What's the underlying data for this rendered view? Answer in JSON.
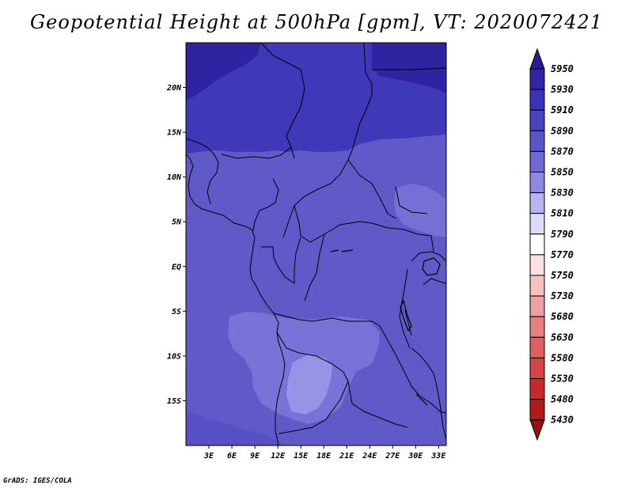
{
  "title": "Geopotential Height at 500hPa [gpm], VT: 2020072421",
  "credit": "GrADS: IGES/COLA",
  "map": {
    "lon_range": [
      0,
      34
    ],
    "lat_range": [
      -20,
      25
    ],
    "lat_labels": [
      "20N",
      "15N",
      "10N",
      "5N",
      "EQ",
      "5S",
      "10S",
      "15S"
    ],
    "lat_values": [
      20,
      15,
      10,
      5,
      0,
      -5,
      -10,
      -15
    ],
    "lon_labels": [
      "3E",
      "6E",
      "9E",
      "12E",
      "15E",
      "18E",
      "21E",
      "24E",
      "27E",
      "30E",
      "33E"
    ],
    "lon_values": [
      3,
      6,
      9,
      12,
      15,
      18,
      21,
      24,
      27,
      30,
      33
    ]
  },
  "colorbar": {
    "labels": [
      "5950",
      "5930",
      "5910",
      "5890",
      "5870",
      "5850",
      "5830",
      "5810",
      "5790",
      "5770",
      "5750",
      "5730",
      "5680",
      "5630",
      "5580",
      "5530",
      "5480",
      "5430"
    ],
    "colors": [
      "#2a1d9c",
      "#3223a8",
      "#3b33b6",
      "#4a44c0",
      "#5c55c8",
      "#6f69d2",
      "#8d88e0",
      "#b8b4ef",
      "#dcdbf9",
      "#ffffff",
      "#fde0e0",
      "#f8c1c1",
      "#f0a0a0",
      "#e88080",
      "#de6060",
      "#d44444",
      "#c82a2a",
      "#b01a1a",
      "#991010"
    ]
  }
}
